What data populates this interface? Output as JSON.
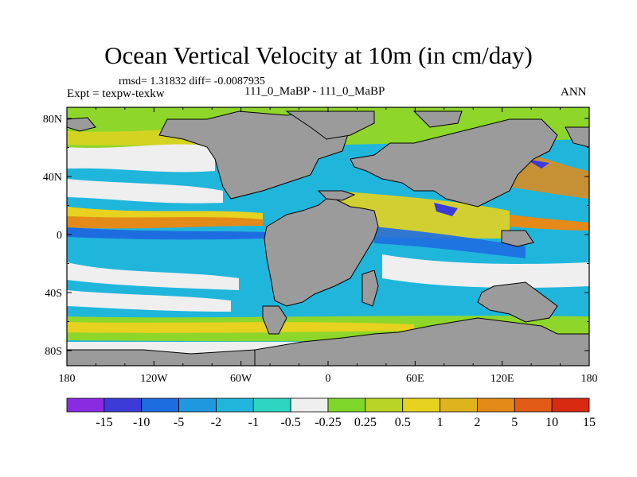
{
  "title": "Ocean Vertical Velocity at 10m (in cm/day)",
  "stats": "rmsd= 1.31832  diff= -0.0087935",
  "expt": "Expt = texpw-texkw",
  "case": "111_0_MaBP - 111_0_MaBP",
  "season": "ANN",
  "lat_labels": [
    "80N",
    "40N",
    "0",
    "40S",
    "80S"
  ],
  "lon_labels": [
    "180",
    "120W",
    "60W",
    "0",
    "60E",
    "120E",
    "180"
  ],
  "colorbar": {
    "labels": [
      "-15",
      "-10",
      "-5",
      "-2",
      "-1",
      "-0.5",
      "-0.25",
      "0.25",
      "0.5",
      "1",
      "2",
      "5",
      "10",
      "15"
    ],
    "colors": [
      "#8a2be2",
      "#3d3bd8",
      "#1e6de0",
      "#1f98e0",
      "#20b6dc",
      "#2dd6c0",
      "#efefef",
      "#7fd62b",
      "#b9d424",
      "#e6d21f",
      "#dfb31d",
      "#e48a18",
      "#e25b14",
      "#d72a10"
    ]
  },
  "colors": {
    "land": "#9b9b9b",
    "coast": "#000000"
  }
}
